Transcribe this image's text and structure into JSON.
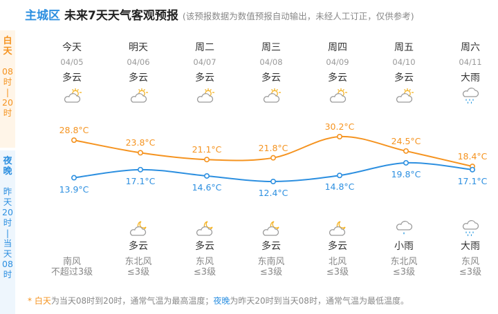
{
  "header": {
    "location": "主城区",
    "title": "未来7天天气客观预报",
    "note": "(该预报数据为数值预报自动输出，未经人工订正，仅供参考)"
  },
  "side": {
    "day_label": [
      "白",
      "天",
      "08",
      "时",
      "|",
      "20",
      "时"
    ],
    "night_label": [
      "夜",
      "晚",
      "昨",
      "天",
      "20",
      "时",
      "|",
      "当",
      "天",
      "08",
      "时"
    ]
  },
  "days": [
    {
      "weekday": "今天",
      "date": "04/05",
      "day_weather": "多云",
      "day_icon": "partly-cloudy-icon",
      "high": 28.8,
      "high_label": "28.8°C",
      "low": 13.9,
      "low_label": "13.9°C",
      "night_icon": "",
      "night_weather": "",
      "wind_dir": "南风",
      "wind_level": "不超过3级"
    },
    {
      "weekday": "明天",
      "date": "04/06",
      "day_weather": "多云",
      "day_icon": "partly-cloudy-icon",
      "high": 23.8,
      "high_label": "23.8°C",
      "low": 17.1,
      "low_label": "17.1°C",
      "night_icon": "cloudy-night-icon",
      "night_weather": "多云",
      "wind_dir": "东北风",
      "wind_level": "≤3级"
    },
    {
      "weekday": "周二",
      "date": "04/07",
      "day_weather": "多云",
      "day_icon": "partly-cloudy-icon",
      "high": 21.1,
      "high_label": "21.1°C",
      "low": 14.6,
      "low_label": "14.6°C",
      "night_icon": "cloudy-night-icon",
      "night_weather": "多云",
      "wind_dir": "东风",
      "wind_level": "≤3级"
    },
    {
      "weekday": "周三",
      "date": "04/08",
      "day_weather": "多云",
      "day_icon": "partly-cloudy-icon",
      "high": 21.8,
      "high_label": "21.8°C",
      "low": 12.4,
      "low_label": "12.4°C",
      "night_icon": "cloudy-night-icon",
      "night_weather": "多云",
      "wind_dir": "东南风",
      "wind_level": "≤3级"
    },
    {
      "weekday": "周四",
      "date": "04/09",
      "day_weather": "多云",
      "day_icon": "partly-cloudy-icon",
      "high": 30.2,
      "high_label": "30.2°C",
      "low": 14.8,
      "low_label": "14.8°C",
      "night_icon": "cloudy-night-icon",
      "night_weather": "多云",
      "wind_dir": "北风",
      "wind_level": "≤3级"
    },
    {
      "weekday": "周五",
      "date": "04/10",
      "day_weather": "多云",
      "day_icon": "partly-cloudy-icon",
      "high": 24.5,
      "high_label": "24.5°C",
      "low": 19.8,
      "low_label": "19.8°C",
      "night_icon": "light-rain-icon",
      "night_weather": "小雨",
      "wind_dir": "东北风",
      "wind_level": "≤3级"
    },
    {
      "weekday": "周六",
      "date": "04/11",
      "day_weather": "大雨",
      "day_icon": "heavy-rain-icon",
      "high": 18.4,
      "high_label": "18.4°C",
      "low": 17.1,
      "low_label": "17.1°C",
      "night_icon": "heavy-rain-icon",
      "night_weather": "大雨",
      "wind_dir": "东风",
      "wind_level": "≤3级"
    }
  ],
  "colors": {
    "high_line": "#f5931f",
    "low_line": "#2c8fe0"
  },
  "footnote": {
    "star": "* ",
    "day_term": "白天",
    "day_text": "为当天08时到20时，通常气温为最高温度；",
    "night_term": "夜晚",
    "night_text": "为昨天20时到当天08时，通常气温为最低温度。"
  }
}
